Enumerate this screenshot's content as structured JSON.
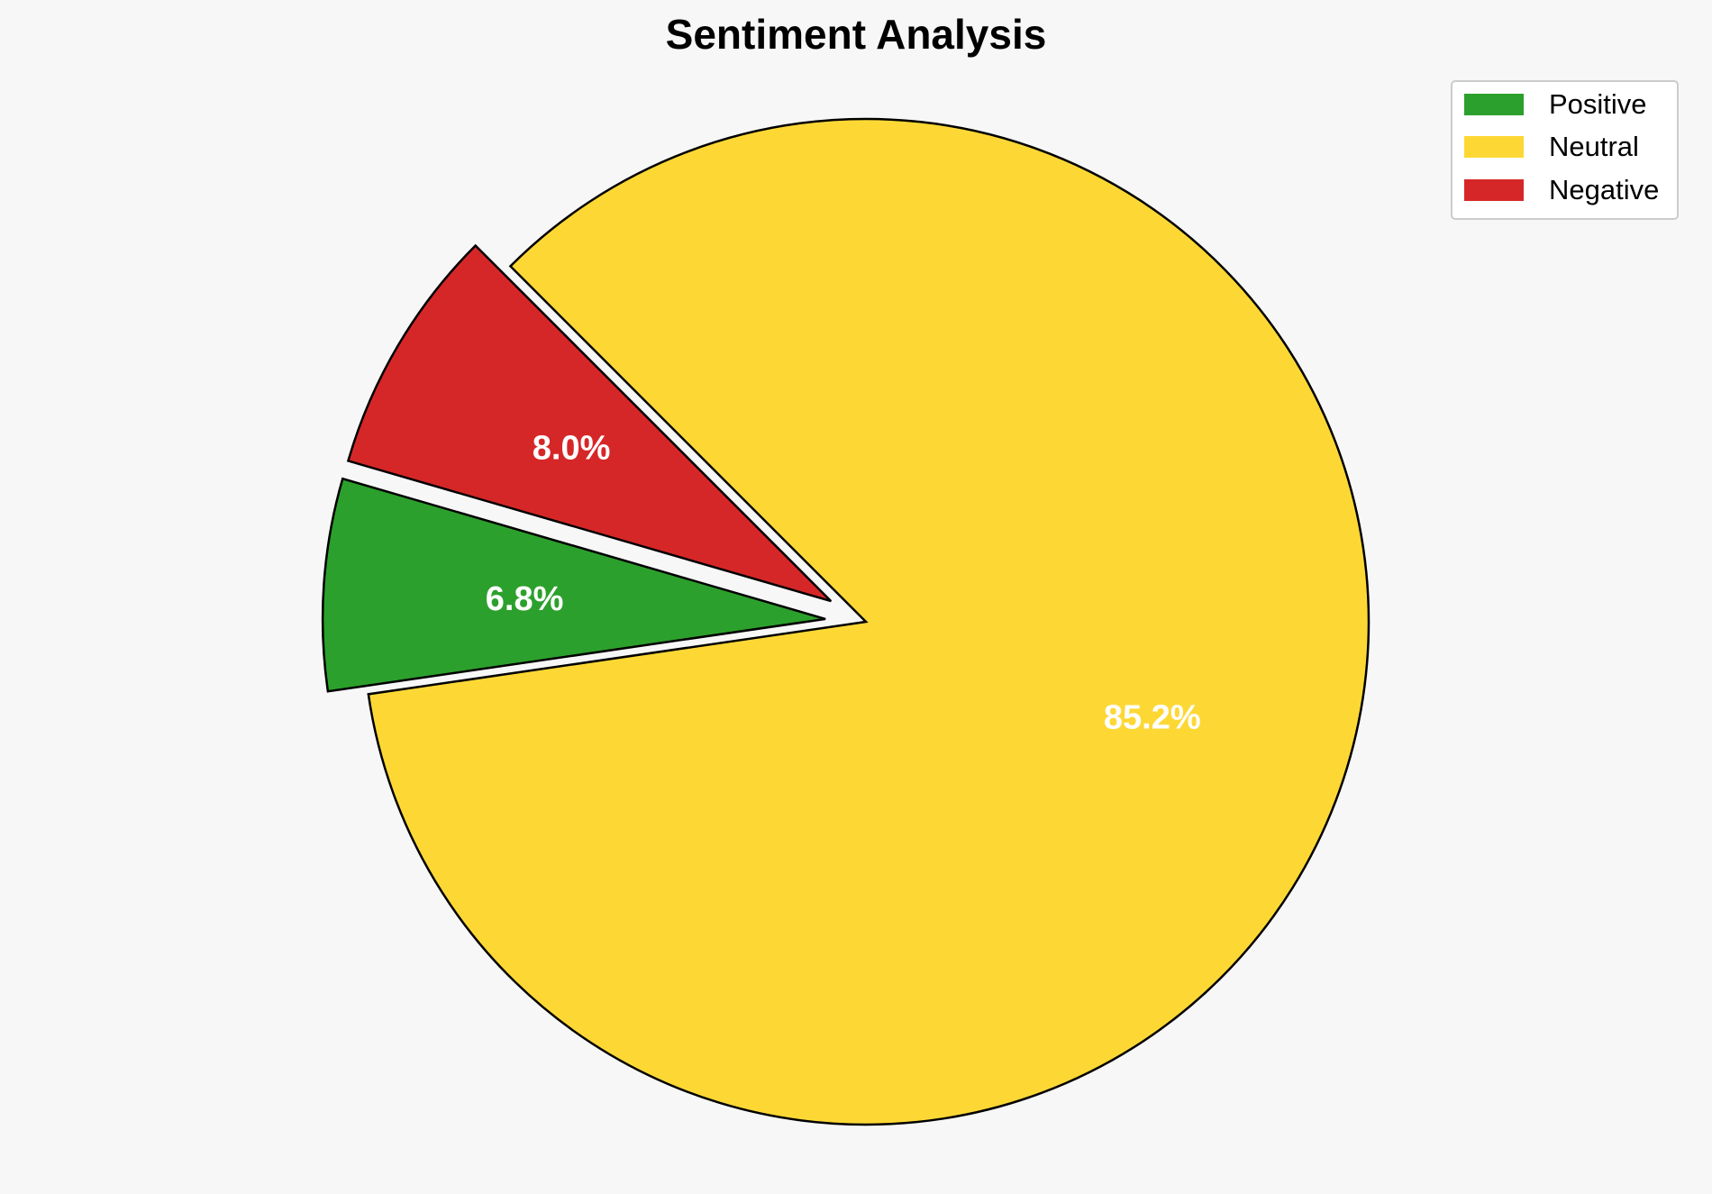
{
  "chart_data": {
    "type": "pie",
    "title": "Sentiment Analysis",
    "categories": [
      "Positive",
      "Neutral",
      "Negative"
    ],
    "values": [
      6.8,
      85.2,
      8.0
    ],
    "value_labels": [
      "6.8%",
      "85.2%",
      "8.0%"
    ],
    "colors": [
      "#2ca02c",
      "#fdd835",
      "#d62728"
    ],
    "exploded": [
      true,
      false,
      true
    ],
    "start_angle_deg": 163.8,
    "direction": "counterclockwise",
    "legend_position": "top-right",
    "edge_color": "#000000"
  }
}
